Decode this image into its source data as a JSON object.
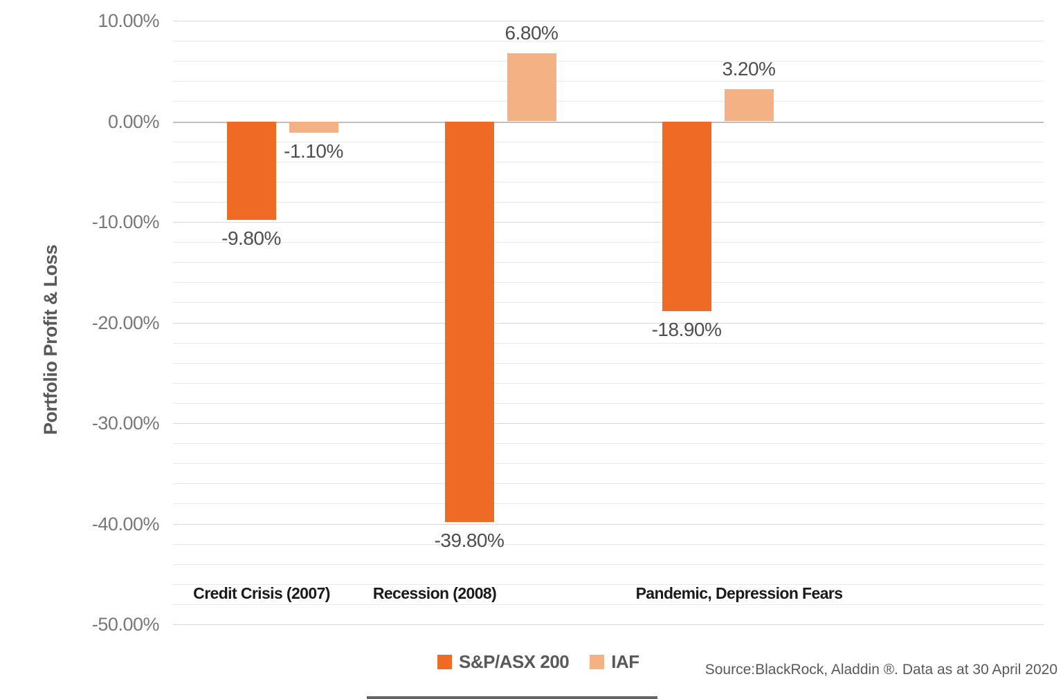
{
  "chart_data": {
    "type": "bar",
    "title": "",
    "ylabel": "Portfolio Profit & Loss",
    "ylim": [
      -50,
      10
    ],
    "minor_gridline_step": 2,
    "major_gridline_step": 10,
    "grid": true,
    "legend_position": "bottom",
    "categories": [
      "Credit Crisis (2007)",
      "Recession (2008)",
      "Pandemic, Depression Fears"
    ],
    "series": [
      {
        "name": "S&P/ASX 200",
        "color": "#ee6a25",
        "values": [
          -9.8,
          -39.8,
          -18.9
        ],
        "data_labels": [
          "-9.80%",
          "-39.80%",
          "-18.90%"
        ]
      },
      {
        "name": "IAF",
        "color": "#f4b183",
        "values": [
          -1.1,
          6.8,
          3.2
        ],
        "data_labels": [
          "-1.10%",
          "6.80%",
          "3.20%"
        ]
      }
    ],
    "yticks": [
      {
        "value": 10,
        "label": "10.00%"
      },
      {
        "value": 0,
        "label": "0.00%"
      },
      {
        "value": -10,
        "label": "-10.00%"
      },
      {
        "value": -20,
        "label": "-20.00%"
      },
      {
        "value": -30,
        "label": "-30.00%"
      },
      {
        "value": -40,
        "label": "-40.00%"
      },
      {
        "value": -50,
        "label": "-50.00%"
      }
    ]
  },
  "footer": {
    "source_note": "Source:BlackRock, Aladdin ®. Data as at 30 April 2020"
  }
}
